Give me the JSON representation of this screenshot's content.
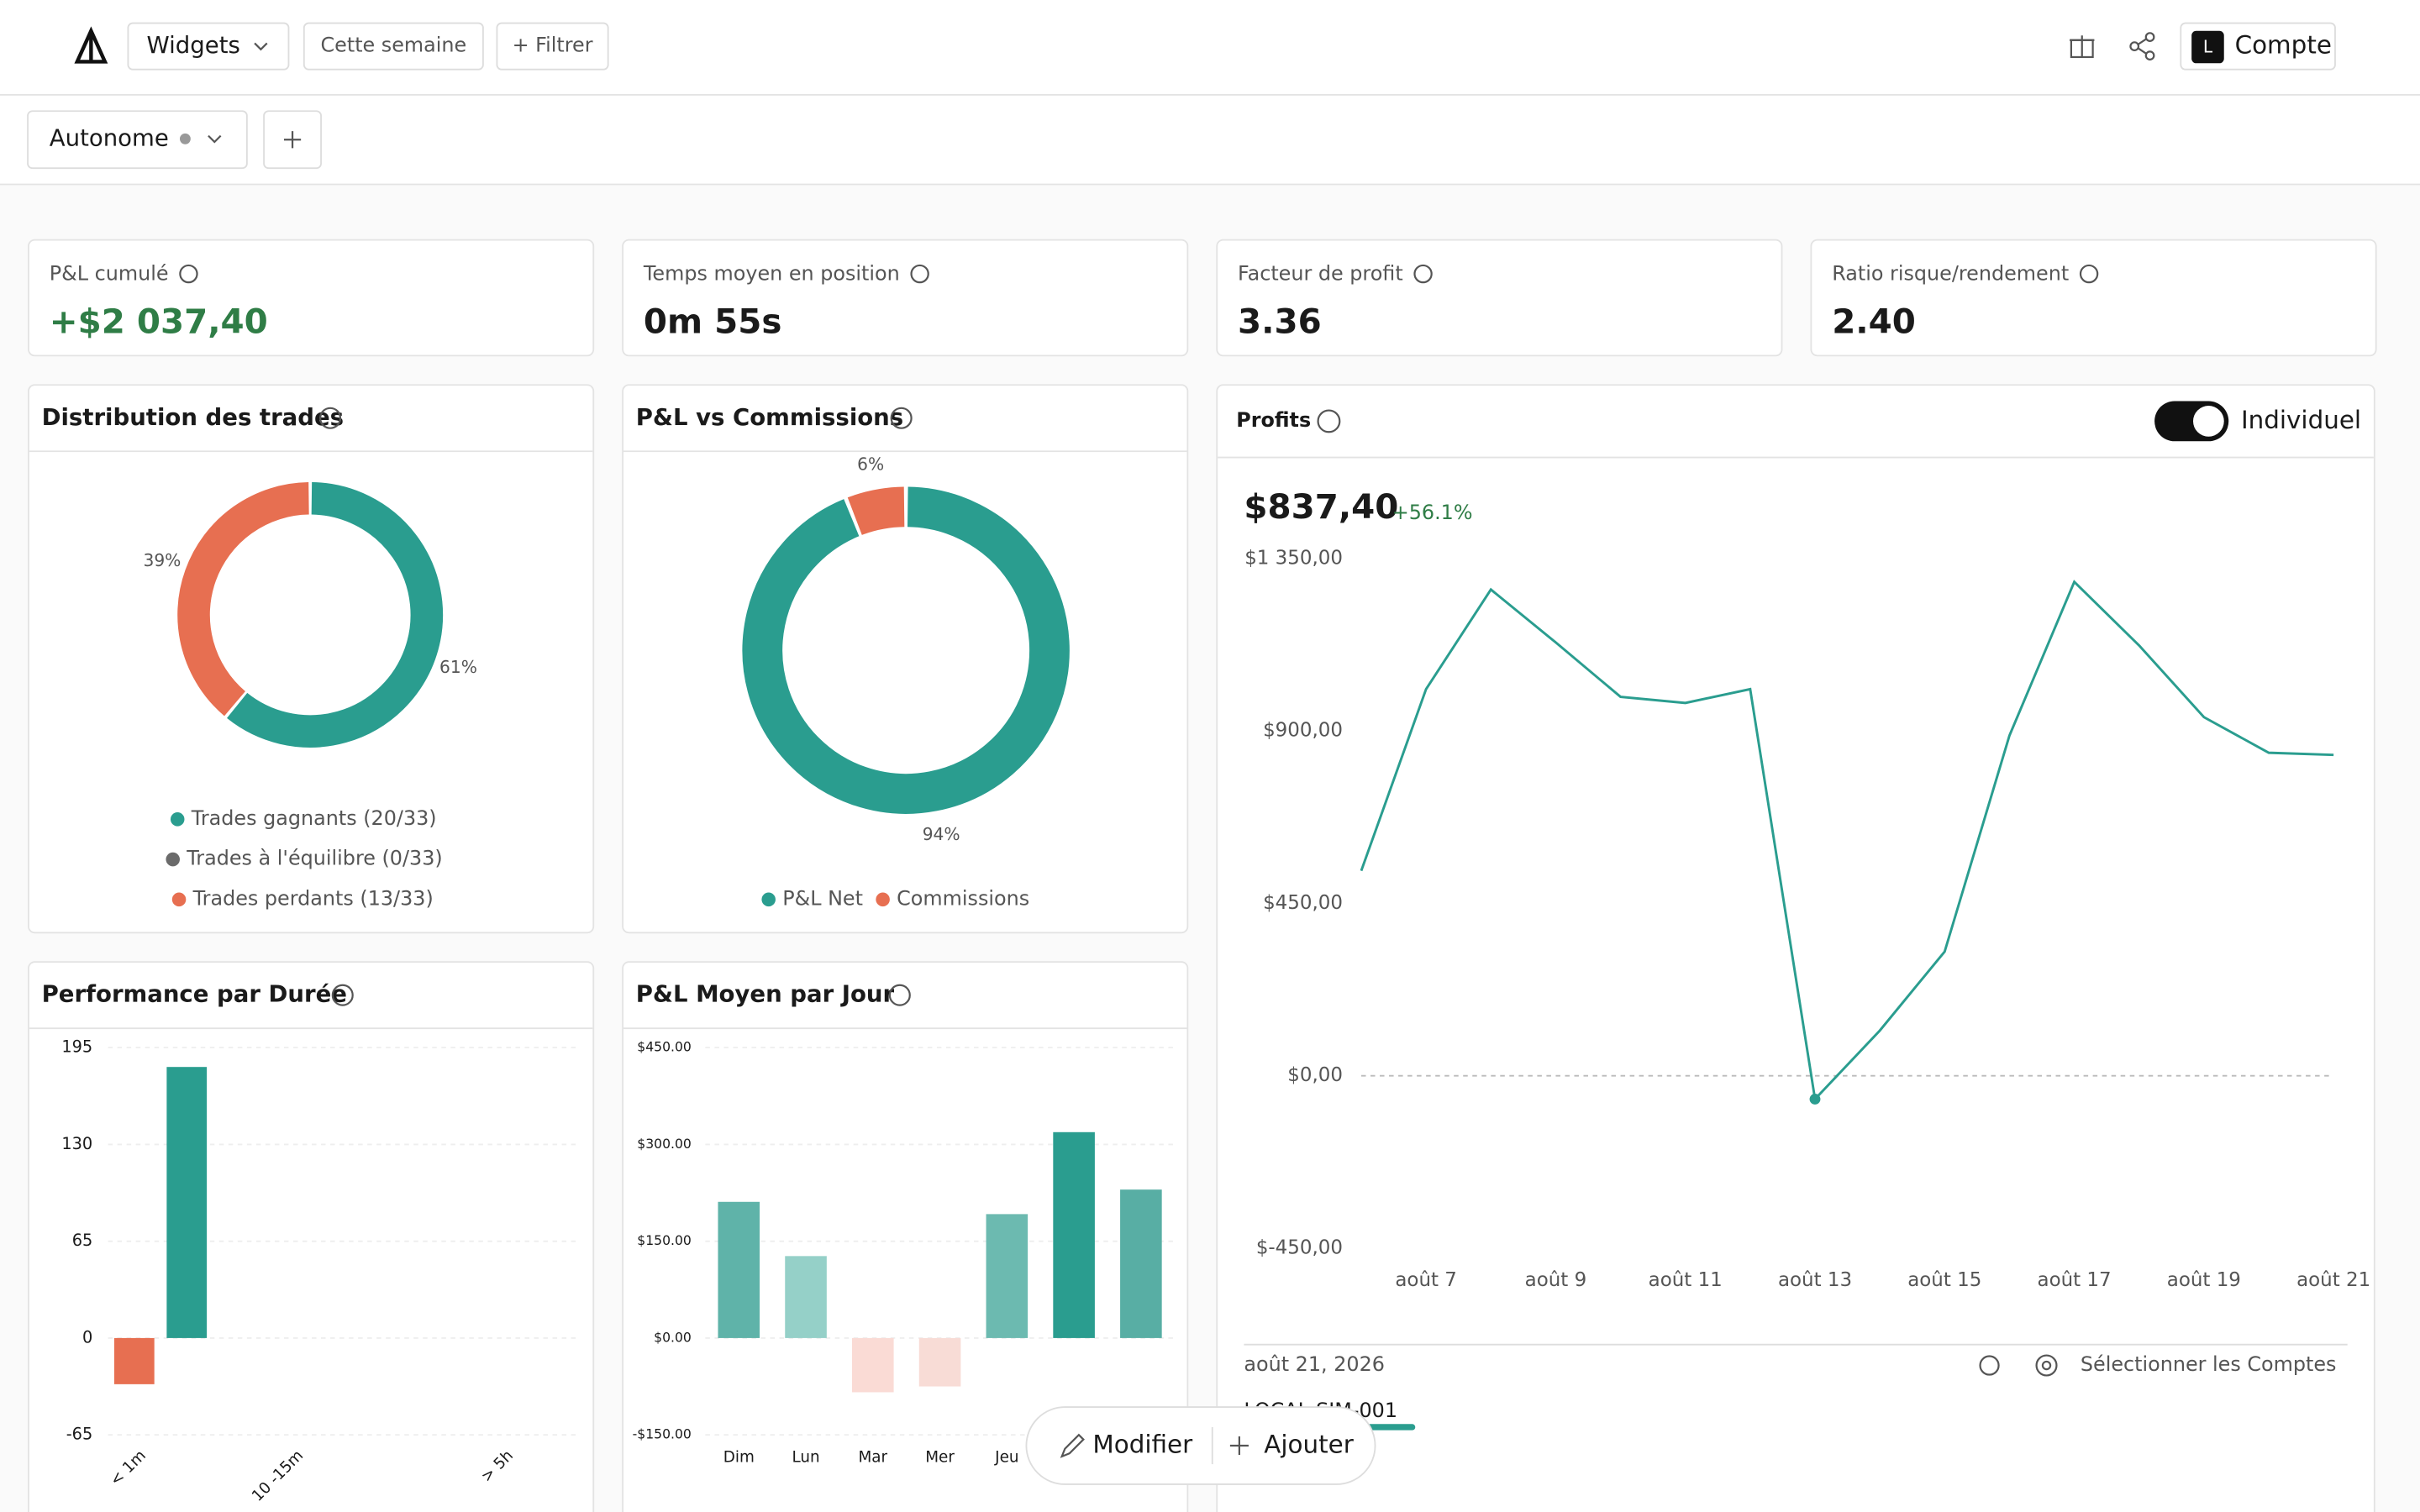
{
  "header": {
    "menu": "Widgets",
    "period": "Cette semaine",
    "filter": "+ Filtrer",
    "account_initial": "L",
    "account": "Compte"
  },
  "workspace": {
    "name": "Autonome"
  },
  "kpis": [
    {
      "label": "P&L cumulé",
      "value": "+$2 037,40"
    },
    {
      "label": "Temps moyen en position",
      "value": "0m 55s"
    },
    {
      "label": "Facteur de profit",
      "value": "3.36"
    },
    {
      "label": "Ratio risque/rendement",
      "value": "2.40"
    }
  ],
  "chart_data": [
    {
      "type": "pie",
      "title": "Distribution des trades",
      "categories": [
        "Trades gagnants (20/33)",
        "Trades à l'équilibre (0/33)",
        "Trades perdants (13/33)"
      ],
      "values": [
        61,
        0,
        39
      ],
      "value_labels": [
        "61%",
        null,
        "39%"
      ],
      "colors": [
        "#2a9d8f",
        "#6b6b6b",
        "#e76f51"
      ]
    },
    {
      "type": "pie",
      "title": "P&L vs Commissions",
      "categories": [
        "P&L Net",
        "Commissions"
      ],
      "values": [
        94,
        6
      ],
      "value_labels": [
        "94%",
        "6%"
      ],
      "colors": [
        "#2a9d8f",
        "#e76f51"
      ]
    },
    {
      "type": "line",
      "title": "Profits",
      "value": "$837,40",
      "change": "+56.1%",
      "toggle": "Individuel",
      "categories": [
        null,
        "août 7",
        null,
        "août 9",
        null,
        "août 11",
        null,
        "août 13",
        null,
        "août 15",
        null,
        "août 17",
        null,
        "août 19",
        null,
        "août 21"
      ],
      "values": [
        535,
        1009,
        1269,
        1131,
        989,
        973,
        1009,
        -61,
        118,
        324,
        888,
        1289,
        1123,
        936,
        843,
        837.4
      ],
      "color": "#2a9d8f",
      "ylim": [
        -450,
        1350
      ],
      "yticks": [
        {
          "value": -450,
          "label": "$-450,00"
        },
        {
          "value": 0,
          "label": "$0,00"
        },
        {
          "value": 450,
          "label": "$450,00"
        },
        {
          "value": 900,
          "label": "$900,00"
        },
        {
          "value": 1350,
          "label": "$1 350,00"
        }
      ],
      "date": "août 21, 2026",
      "accounts_button": "Sélectionner les Comptes",
      "account": "LOCAL-SIM-001"
    },
    {
      "type": "bar",
      "title": "Performance par Durée",
      "categories": [
        "< 1m",
        null,
        null,
        "10 -15m",
        null,
        null,
        null,
        "> 5h",
        null
      ],
      "values": [
        -31,
        182,
        0,
        0,
        0,
        0,
        0,
        0,
        0
      ],
      "colors": [
        "#e76f51",
        "#2a9d8f",
        "#2a9d8f",
        "#2a9d8f",
        "#2a9d8f",
        "#2a9d8f",
        "#2a9d8f",
        "#2a9d8f",
        "#2a9d8f"
      ],
      "ylim": [
        -65,
        195
      ],
      "yticks": [
        -65,
        0,
        65,
        130,
        195
      ],
      "grid": true
    },
    {
      "type": "bar",
      "title": "P&L Moyen par Jour",
      "categories": [
        "Dim",
        "Lun",
        "Mar",
        "Mer",
        "Jeu",
        null,
        null
      ],
      "values": [
        211,
        127,
        -84,
        -75,
        192,
        319,
        230
      ],
      "colors": [
        "#5fb3a9",
        "#95d0c8",
        "#fadbd5",
        "#f8dcd6",
        "#6cbab0",
        "#2a9d8f",
        "#58aea4"
      ],
      "ylim": [
        -150,
        450
      ],
      "yticks": [
        {
          "value": -150,
          "label": "-$150.00"
        },
        {
          "value": 0,
          "label": "$0.00"
        },
        {
          "value": 150,
          "label": "$150.00"
        },
        {
          "value": 300,
          "label": "$300.00"
        },
        {
          "value": 450,
          "label": "$450.00"
        }
      ],
      "grid": true
    }
  ],
  "toolbar": {
    "edit": "Modifier",
    "add": "Ajouter"
  }
}
